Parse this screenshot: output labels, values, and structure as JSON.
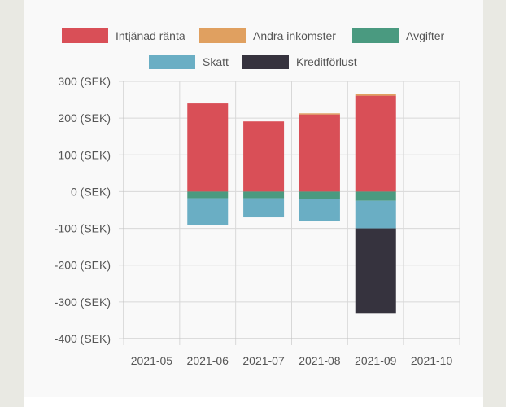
{
  "chart_data": {
    "type": "bar",
    "stacked": true,
    "categories": [
      "2021-05",
      "2021-06",
      "2021-07",
      "2021-08",
      "2021-09",
      "2021-10"
    ],
    "ylim": [
      -400,
      300
    ],
    "yticks": [
      300,
      200,
      100,
      0,
      -100,
      -200,
      -300,
      -400
    ],
    "ytick_labels": [
      "300 (SEK)",
      "200 (SEK)",
      "100 (SEK)",
      "0 (SEK)",
      "-100 (SEK)",
      "-200 (SEK)",
      "-300 (SEK)",
      "-400 (SEK)"
    ],
    "grid": true,
    "legend_position": "top",
    "series": [
      {
        "name": "Intjänad ränta",
        "color": "#d94f57",
        "values": [
          0,
          240,
          191,
          210,
          261,
          0
        ]
      },
      {
        "name": "Andra inkomster",
        "color": "#e0a060",
        "values": [
          0,
          0,
          0,
          3,
          5,
          0
        ]
      },
      {
        "name": "Avgifter",
        "color": "#4a9a80",
        "values": [
          0,
          -18,
          -18,
          -20,
          -25,
          0
        ]
      },
      {
        "name": "Skatt",
        "color": "#6aaec4",
        "values": [
          0,
          -72,
          -52,
          -60,
          -75,
          0
        ]
      },
      {
        "name": "Kreditförlust",
        "color": "#36333e",
        "values": [
          0,
          0,
          0,
          0,
          -232,
          0
        ]
      }
    ]
  }
}
